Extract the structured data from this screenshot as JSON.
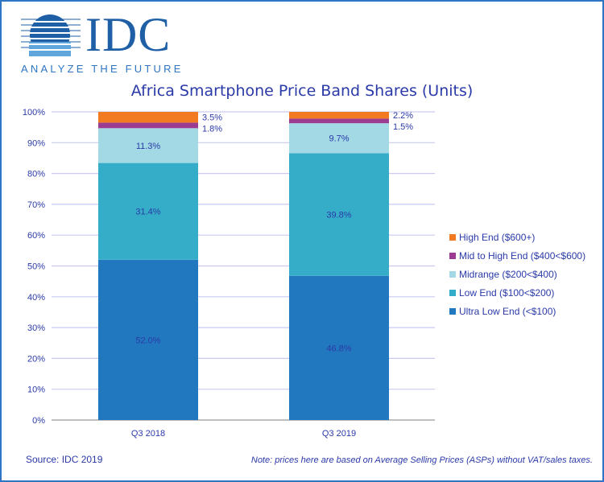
{
  "header": {
    "logo_text": "IDC",
    "tagline": "ANALYZE THE FUTURE"
  },
  "chart_data": {
    "type": "bar",
    "stacked": true,
    "title": "Africa Smartphone Price Band Shares (Units)",
    "categories": [
      "Q3 2018",
      "Q3 2019"
    ],
    "ylim": [
      0,
      100
    ],
    "yticks": [
      "0%",
      "10%",
      "20%",
      "30%",
      "40%",
      "50%",
      "60%",
      "70%",
      "80%",
      "90%",
      "100%"
    ],
    "grid": true,
    "legend": "right",
    "series": [
      {
        "name": "Ultra Low End (<$100)",
        "values": [
          52.0,
          46.8
        ],
        "labels": [
          "52.0%",
          "46.8%"
        ],
        "color": "#2278bf"
      },
      {
        "name": "Low End ($100<$200)",
        "values": [
          31.4,
          39.8
        ],
        "labels": [
          "31.4%",
          "39.8%"
        ],
        "color": "#35adc8"
      },
      {
        "name": "Midrange ($200<$400)",
        "values": [
          11.3,
          9.7
        ],
        "labels": [
          "11.3%",
          "9.7%"
        ],
        "color": "#a2d9e5"
      },
      {
        "name": "Mid to High End ($400<$600)",
        "values": [
          1.8,
          1.5
        ],
        "labels": [
          "1.8%",
          "1.5%"
        ],
        "color": "#9b3c91"
      },
      {
        "name": "High End ($600+)",
        "values": [
          3.5,
          2.2
        ],
        "labels": [
          "3.5%",
          "2.2%"
        ],
        "color": "#f27b22"
      }
    ]
  },
  "footer": {
    "source": "Source: IDC 2019",
    "note": "Note: prices here are based on Average Selling Prices (ASPs) without VAT/sales taxes."
  }
}
